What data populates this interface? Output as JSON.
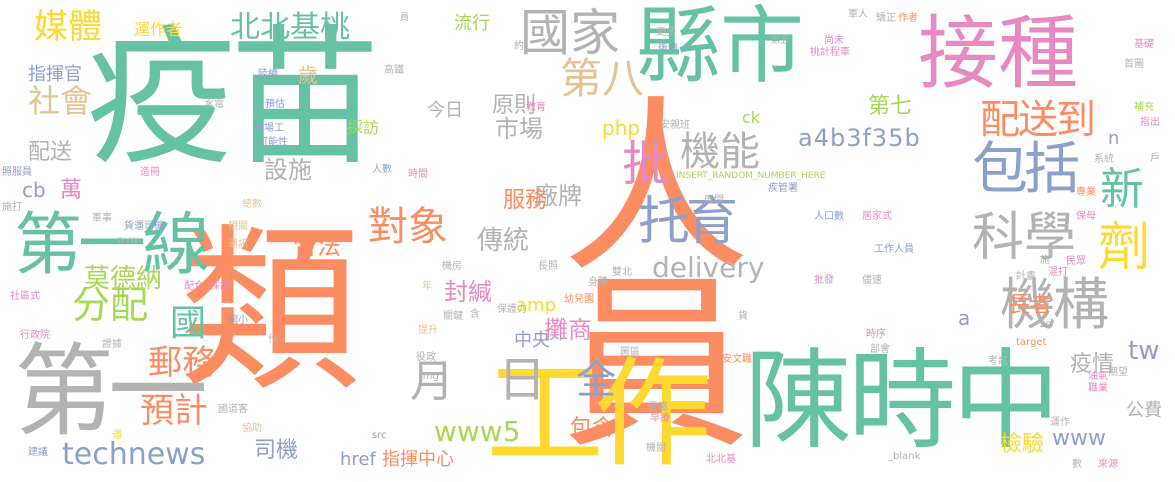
{
  "palette": {
    "green": "#66c2a5",
    "orange": "#fc8d62",
    "blue": "#8da0cb",
    "pink": "#e78ac3",
    "lime": "#a6d854",
    "yellow": "#ffd92f",
    "tan": "#e5c494",
    "gray": "#b3b3b3"
  },
  "words": [
    {
      "text": "人員",
      "color": "orange"
    },
    {
      "text": "疫苗",
      "color": "green"
    },
    {
      "text": "類",
      "color": "orange"
    },
    {
      "text": "縣市",
      "color": "green"
    },
    {
      "text": "接種",
      "color": "pink"
    },
    {
      "text": "陳時中",
      "color": "green"
    },
    {
      "text": "工作",
      "color": "yellow"
    },
    {
      "text": "第一",
      "color": "gray"
    },
    {
      "text": "第一線",
      "color": "green"
    },
    {
      "text": "國家",
      "color": "gray"
    },
    {
      "text": "媒體",
      "color": "yellow"
    },
    {
      "text": "北北基桃",
      "color": "green"
    },
    {
      "text": "包括",
      "color": "blue"
    },
    {
      "text": "配送到",
      "color": "orange"
    },
    {
      "text": "機構",
      "color": "gray"
    },
    {
      "text": "科學",
      "color": "gray"
    },
    {
      "text": "對象",
      "color": "orange"
    },
    {
      "text": "托育",
      "color": "blue"
    },
    {
      "text": "機能",
      "color": "gray"
    },
    {
      "text": "第八",
      "color": "tan"
    },
    {
      "text": "社會",
      "color": "tan"
    },
    {
      "text": "分配",
      "color": "lime"
    },
    {
      "text": "郵務",
      "color": "orange"
    },
    {
      "text": "月",
      "color": "gray"
    },
    {
      "text": "日",
      "color": "gray"
    },
    {
      "text": "全",
      "color": "blue"
    },
    {
      "text": "批",
      "color": "pink"
    },
    {
      "text": "劑",
      "color": "yellow"
    },
    {
      "text": "新",
      "color": "green"
    },
    {
      "text": "國",
      "color": "green"
    },
    {
      "text": "預計",
      "color": "orange"
    },
    {
      "text": "莫德納",
      "color": "lime"
    },
    {
      "text": "technews",
      "color": "blue"
    },
    {
      "text": "www5",
      "color": "lime"
    },
    {
      "text": "www",
      "color": "blue"
    },
    {
      "text": "delivery",
      "color": "gray"
    },
    {
      "text": "a4b3f35b",
      "color": "blue"
    },
    {
      "text": "市場",
      "color": "gray"
    },
    {
      "text": "原則",
      "color": "gray"
    },
    {
      "text": "設施",
      "color": "gray"
    },
    {
      "text": "廠牌",
      "color": "gray"
    },
    {
      "text": "傳統",
      "color": "gray"
    },
    {
      "text": "合法",
      "color": "orange"
    },
    {
      "text": "服務",
      "color": "orange"
    },
    {
      "text": "封緘",
      "color": "pink"
    },
    {
      "text": "攤商",
      "color": "pink"
    },
    {
      "text": "包含",
      "color": "orange"
    },
    {
      "text": "檢驗",
      "color": "yellow"
    },
    {
      "text": "長者",
      "color": "orange"
    },
    {
      "text": "第七",
      "color": "lime"
    },
    {
      "text": "疫情",
      "color": "gray"
    },
    {
      "text": "tw",
      "color": "blue"
    },
    {
      "text": "公費",
      "color": "gray"
    },
    {
      "text": "司機",
      "color": "blue"
    },
    {
      "text": "指揮中心",
      "color": "orange"
    },
    {
      "text": "href",
      "color": "blue"
    },
    {
      "text": "中央",
      "color": "blue"
    },
    {
      "text": "運作者",
      "color": "yellow"
    },
    {
      "text": "指揮官",
      "color": "blue"
    },
    {
      "text": "配送",
      "color": "gray"
    },
    {
      "text": "萬",
      "color": "pink"
    },
    {
      "text": "歲",
      "color": "tan"
    },
    {
      "text": "流行",
      "color": "lime"
    },
    {
      "text": "php",
      "color": "yellow"
    },
    {
      "text": "amp",
      "color": "yellow"
    },
    {
      "text": "今日",
      "color": "gray"
    },
    {
      "text": "採訪",
      "color": "lime"
    },
    {
      "text": "cb",
      "color": "blue"
    },
    {
      "text": "ck",
      "color": "lime"
    },
    {
      "text": "n",
      "color": "blue"
    },
    {
      "text": "a",
      "color": "blue"
    },
    {
      "text": "INSERT_RANDOM_NUMBER_HERE",
      "color": "lime"
    },
    {
      "text": "約",
      "color": "gray"
    },
    {
      "text": "員",
      "color": "gray"
    },
    {
      "text": "陸續",
      "color": "blue"
    },
    {
      "text": "高鐵",
      "color": "gray"
    },
    {
      "text": "水電",
      "color": "gray"
    },
    {
      "text": "預估",
      "color": "blue"
    },
    {
      "text": "可能性",
      "color": "blue"
    },
    {
      "text": "市場工",
      "color": "blue"
    },
    {
      "text": "人數",
      "color": "blue"
    },
    {
      "text": "時間",
      "color": "pink"
    },
    {
      "text": "教育",
      "color": "pink"
    },
    {
      "text": "安親班",
      "color": "gray"
    },
    {
      "text": "造冊",
      "color": "pink"
    },
    {
      "text": "照服員",
      "color": "blue"
    },
    {
      "text": "施打",
      "color": "gray"
    },
    {
      "text": "軍事",
      "color": "gray"
    },
    {
      "text": "貨運司機",
      "color": "blue"
    },
    {
      "text": "總數",
      "color": "tan"
    },
    {
      "text": "相關",
      "color": "tan"
    },
    {
      "text": "通訊",
      "color": "tan"
    },
    {
      "text": "avw",
      "color": "gray"
    },
    {
      "text": "配合",
      "color": "pink"
    },
    {
      "text": "採訪",
      "color": "pink"
    },
    {
      "text": "社區式",
      "color": "pink"
    },
    {
      "text": "行政院",
      "color": "pink"
    },
    {
      "text": "國小",
      "color": "blue"
    },
    {
      "text": "證據",
      "color": "gray"
    },
    {
      "text": "作",
      "color": "gray"
    },
    {
      "text": "建議",
      "color": "blue"
    },
    {
      "text": "運",
      "color": "yellow"
    },
    {
      "text": "協助",
      "color": "tan"
    },
    {
      "text": "國道客",
      "color": "gray"
    },
    {
      "text": "src",
      "color": "blue"
    },
    {
      "text": "img",
      "color": "gray"
    },
    {
      "text": "役政",
      "color": "gray"
    },
    {
      "text": "提升",
      "color": "tan"
    },
    {
      "text": "關鍵",
      "color": "gray"
    },
    {
      "text": "含",
      "color": "gray"
    },
    {
      "text": "保護力",
      "color": "gray"
    },
    {
      "text": "幼兒園",
      "color": "orange"
    },
    {
      "text": "身障",
      "color": "gray"
    },
    {
      "text": "雙北",
      "color": "gray"
    },
    {
      "text": "長照",
      "color": "gray"
    },
    {
      "text": "機房",
      "color": "gray"
    },
    {
      "text": "年",
      "color": "tan"
    },
    {
      "text": "貨",
      "color": "gray"
    },
    {
      "text": "圖區",
      "color": "gray"
    },
    {
      "text": "早療",
      "color": "pink"
    },
    {
      "text": "靈鐵",
      "color": "gray"
    },
    {
      "text": "機關",
      "color": "gray"
    },
    {
      "text": "北北基",
      "color": "pink"
    },
    {
      "text": "國安文職",
      "color": "orange"
    },
    {
      "text": "部會",
      "color": "gray"
    },
    {
      "text": "時序",
      "color": "pink"
    },
    {
      "text": "考試",
      "color": "gray"
    },
    {
      "text": "target",
      "color": "orange"
    },
    {
      "text": "_blank",
      "color": "gray"
    },
    {
      "text": "運作",
      "color": "gray"
    },
    {
      "text": "數",
      "color": "gray"
    },
    {
      "text": "來源",
      "color": "pink"
    },
    {
      "text": "期望",
      "color": "gray"
    },
    {
      "text": "油氣",
      "color": "pink"
    },
    {
      "text": "職業",
      "color": "pink"
    },
    {
      "text": "zo",
      "color": "gray"
    },
    {
      "text": "計畫",
      "color": "gray"
    },
    {
      "text": "批發",
      "color": "pink"
    },
    {
      "text": "儘速",
      "color": "gray"
    },
    {
      "text": "施",
      "color": "gray"
    },
    {
      "text": "混打",
      "color": "pink"
    },
    {
      "text": "民眾",
      "color": "pink"
    },
    {
      "text": "工作人員",
      "color": "blue"
    },
    {
      "text": "人口數",
      "color": "blue"
    },
    {
      "text": "居家式",
      "color": "pink"
    },
    {
      "text": "保母",
      "color": "pink"
    },
    {
      "text": "專業",
      "color": "orange"
    },
    {
      "text": "疾管署",
      "color": "blue"
    },
    {
      "text": "展開",
      "color": "gray"
    },
    {
      "text": "系統",
      "color": "gray"
    },
    {
      "text": "戶",
      "color": "gray"
    },
    {
      "text": "指出",
      "color": "pink"
    },
    {
      "text": "補充",
      "color": "lime"
    },
    {
      "text": "首圖",
      "color": "gray"
    },
    {
      "text": "基礎",
      "color": "pink"
    },
    {
      "text": "桃計程車",
      "color": "pink"
    },
    {
      "text": "尚未",
      "color": "pink"
    },
    {
      "text": "矯正",
      "color": "gray"
    },
    {
      "text": "作者",
      "color": "orange"
    },
    {
      "text": "軍人",
      "color": "gray"
    },
    {
      "text": "第五",
      "color": "gray"
    },
    {
      "text": "後續",
      "color": "blue"
    },
    {
      "text": "更多",
      "color": "gray"
    }
  ]
}
